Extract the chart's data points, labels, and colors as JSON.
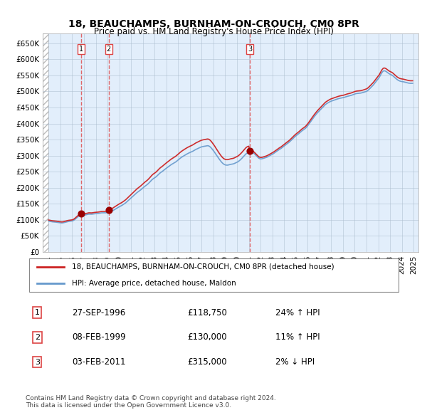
{
  "title": "18, BEAUCHAMPS, BURNHAM-ON-CROUCH, CM0 8PR",
  "subtitle": "Price paid vs. HM Land Registry's House Price Index (HPI)",
  "legend_line1": "18, BEAUCHAMPS, BURNHAM-ON-CROUCH, CM0 8PR (detached house)",
  "legend_line2": "HPI: Average price, detached house, Maldon",
  "sale_dates": [
    "1996-09-27",
    "1999-02-08",
    "2011-02-03"
  ],
  "sale_prices": [
    118750,
    130000,
    315000
  ],
  "sale_labels": [
    "1",
    "2",
    "3"
  ],
  "sale_notes": [
    "24% ↑ HPI",
    "11% ↑ HPI",
    "2% ↓ HPI"
  ],
  "sale_date_strs": [
    "27-SEP-1996",
    "08-FEB-1999",
    "03-FEB-2011"
  ],
  "sale_price_strs": [
    "£118,750",
    "£130,000",
    "£315,000"
  ],
  "hpi_color": "#6699cc",
  "price_color": "#cc2222",
  "dot_color": "#990000",
  "vline_color": "#dd4444",
  "shade_color": "#ddeeff",
  "bg_color": "#e8f0f8",
  "grid_color": "#aabbcc",
  "ylim": [
    0,
    680000
  ],
  "yticks": [
    0,
    50000,
    100000,
    150000,
    200000,
    250000,
    300000,
    350000,
    400000,
    450000,
    500000,
    550000,
    600000,
    650000
  ],
  "ytick_labels": [
    "£0",
    "£50K",
    "£100K",
    "£150K",
    "£200K",
    "£250K",
    "£300K",
    "£350K",
    "£400K",
    "£450K",
    "£500K",
    "£550K",
    "£600K",
    "£650K"
  ],
  "footer": "Contains HM Land Registry data © Crown copyright and database right 2024.\nThis data is licensed under the Open Government Licence v3.0.",
  "hatch_color": "#cccccc"
}
